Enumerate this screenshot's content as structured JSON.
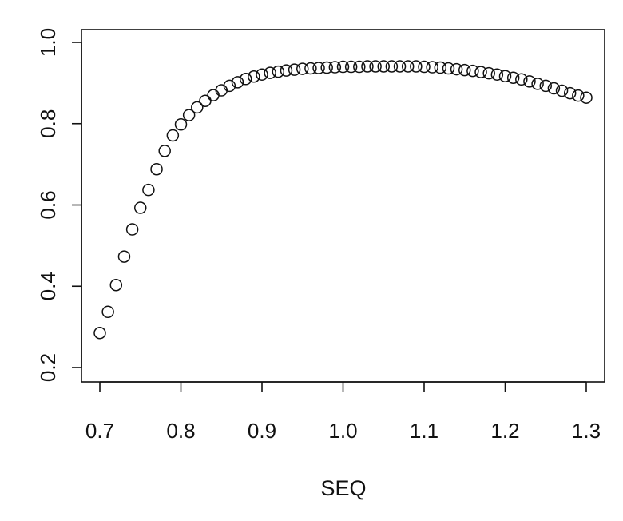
{
  "chart_data": {
    "type": "scatter",
    "title": "",
    "xlabel": "SEQ",
    "ylabel": "",
    "xlim": [
      0.7,
      1.3
    ],
    "ylim": [
      0.2,
      1.0
    ],
    "x_ticks": [
      "0.7",
      "0.8",
      "0.9",
      "1.0",
      "1.1",
      "1.2",
      "1.3"
    ],
    "y_ticks": [
      "0.2",
      "0.4",
      "0.6",
      "0.8",
      "1.0"
    ],
    "grid": false,
    "legend": "none",
    "marker": "open-circle",
    "series": [
      {
        "x": [
          0.7,
          0.71,
          0.72,
          0.73,
          0.74,
          0.75,
          0.76,
          0.77,
          0.78,
          0.79,
          0.8,
          0.81,
          0.82,
          0.83,
          0.84,
          0.85,
          0.86,
          0.87,
          0.88,
          0.89,
          0.9,
          0.91,
          0.92,
          0.93,
          0.94,
          0.95,
          0.96,
          0.97,
          0.98,
          0.99,
          1.0,
          1.01,
          1.02,
          1.03,
          1.04,
          1.05,
          1.06,
          1.07,
          1.08,
          1.09,
          1.1,
          1.11,
          1.12,
          1.13,
          1.14,
          1.15,
          1.16,
          1.17,
          1.18,
          1.19,
          1.2,
          1.21,
          1.22,
          1.23,
          1.24,
          1.25,
          1.26,
          1.27,
          1.28,
          1.29,
          1.3
        ],
        "y": [
          0.285,
          0.337,
          0.403,
          0.473,
          0.54,
          0.593,
          0.637,
          0.688,
          0.733,
          0.771,
          0.798,
          0.821,
          0.84,
          0.856,
          0.87,
          0.882,
          0.893,
          0.902,
          0.91,
          0.916,
          0.921,
          0.925,
          0.928,
          0.931,
          0.933,
          0.935,
          0.936,
          0.937,
          0.938,
          0.939,
          0.94,
          0.94,
          0.94,
          0.941,
          0.941,
          0.941,
          0.941,
          0.941,
          0.941,
          0.941,
          0.94,
          0.939,
          0.938,
          0.936,
          0.934,
          0.932,
          0.93,
          0.927,
          0.924,
          0.921,
          0.917,
          0.913,
          0.909,
          0.904,
          0.898,
          0.893,
          0.887,
          0.881,
          0.875,
          0.869,
          0.864
        ]
      }
    ]
  }
}
